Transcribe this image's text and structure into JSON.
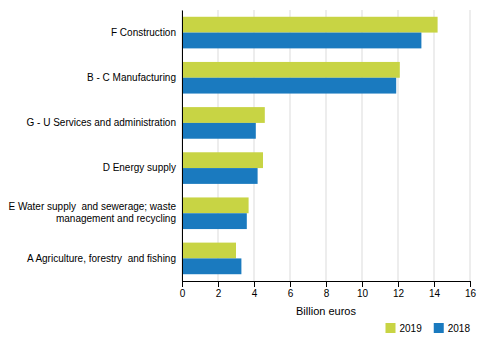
{
  "chart_data": {
    "type": "bar",
    "orientation": "horizontal",
    "categories": [
      "A Agriculture, forestry  and fishing",
      "E Water supply  and sewerage; waste\n    management and recycling",
      "D Energy supply",
      "G - U Services and administration",
      "B - C Manufacturing",
      "F Construction"
    ],
    "series": [
      {
        "name": "2019",
        "color": "#c8d444",
        "values": [
          3.0,
          3.7,
          4.5,
          4.6,
          12.1,
          14.2
        ]
      },
      {
        "name": "2018",
        "color": "#1a7abf",
        "values": [
          3.3,
          3.6,
          4.2,
          4.1,
          11.9,
          13.3
        ]
      }
    ],
    "xlabel": "Billion euros",
    "xlim": [
      0,
      16
    ],
    "xticks": [
      0,
      2,
      4,
      6,
      8,
      10,
      12,
      14,
      16
    ],
    "grid": true,
    "legend": "lower right"
  }
}
